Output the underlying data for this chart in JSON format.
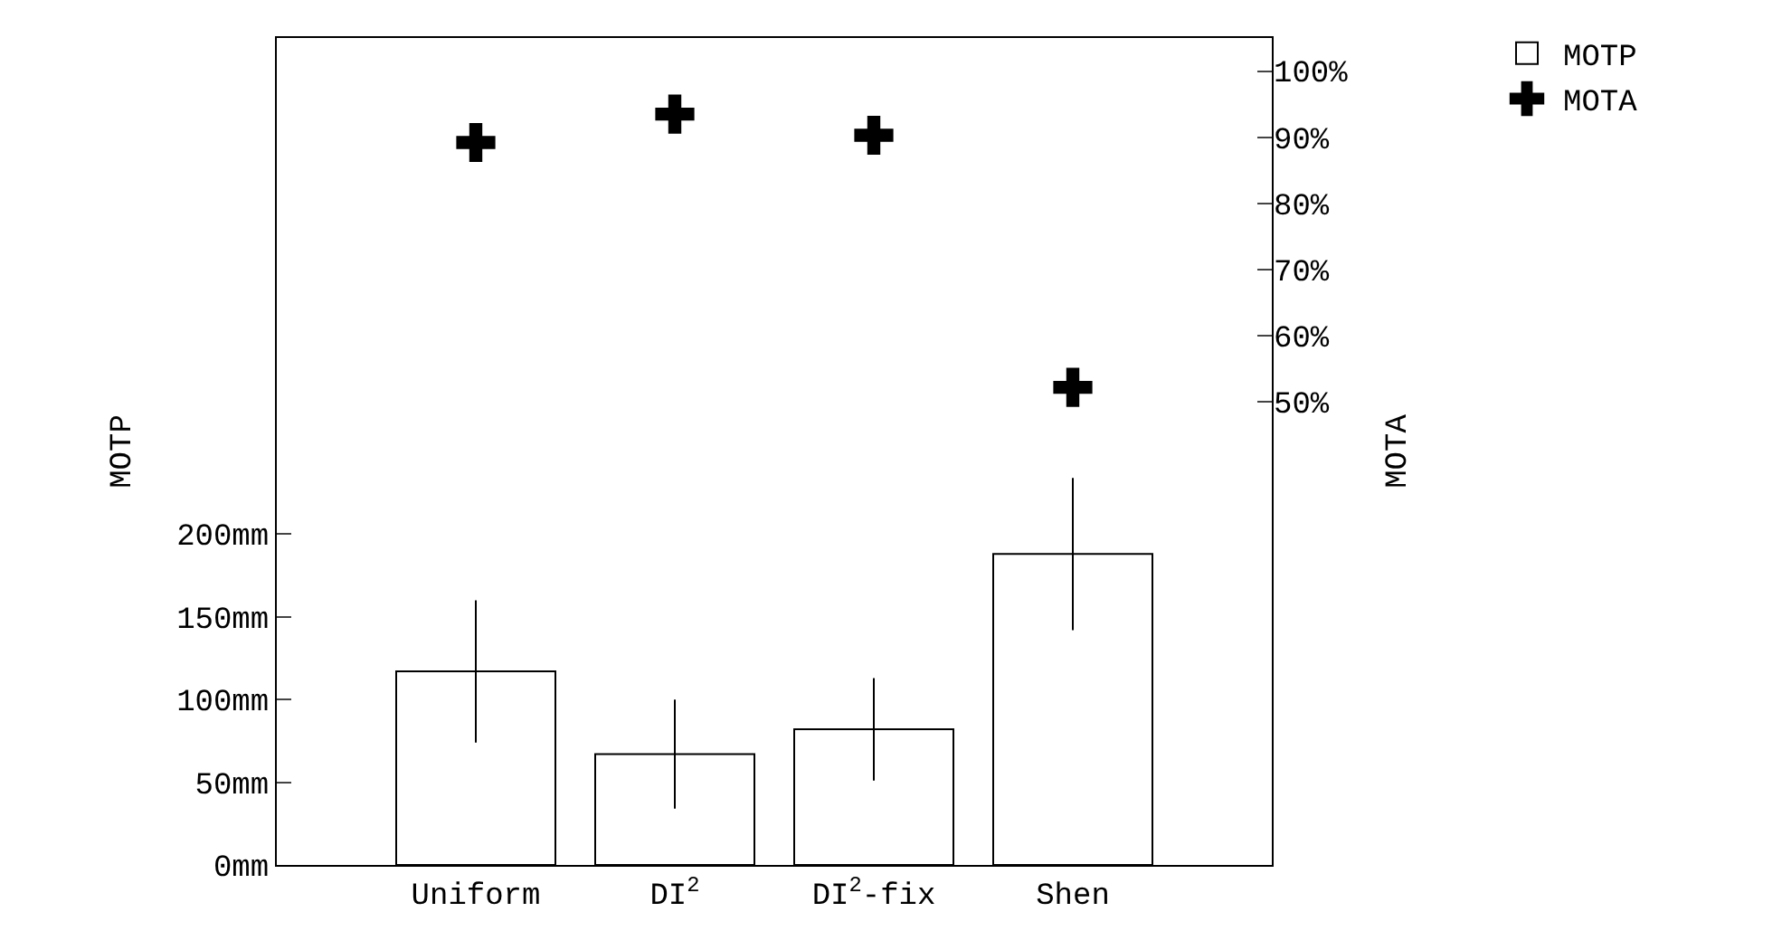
{
  "chart_data": {
    "type": "scatter",
    "ylabel": "MOTP",
    "y2label": "MOTA",
    "categories": [
      "Uniform",
      "DI$^{2}$",
      "DI$^{2}$-fix",
      "Shen"
    ],
    "series": [
      {
        "name": "MOTP",
        "type": "bar",
        "color": "#ffffff",
        "values": [
          117,
          67,
          82,
          188
        ],
        "errors": [
          [
            74,
            160
          ],
          [
            34,
            100
          ],
          [
            51,
            113
          ],
          [
            142,
            234
          ]
        ]
      },
      {
        "name": "MOTA",
        "axis": "y2",
        "color": "#000000",
        "marker": "cross",
        "values": [
          89.2,
          93.5,
          90.3,
          52.2
        ]
      }
    ],
    "ylim": [
      0,
      500
    ],
    "yticks": [
      {
        "value": 0,
        "label": "0mm"
      },
      {
        "value": 50,
        "label": "50mm"
      },
      {
        "value": 100,
        "label": "100mm"
      },
      {
        "value": 150,
        "label": "150mm"
      },
      {
        "value": 200,
        "label": "200mm"
      }
    ],
    "y2lim": [
      -20,
      105
    ],
    "y2ticks": [
      {
        "value": 50,
        "label": "50%"
      },
      {
        "value": 60,
        "label": "60%"
      },
      {
        "value": 70,
        "label": "70%"
      },
      {
        "value": 80,
        "label": "80%"
      },
      {
        "value": 90,
        "label": "90%"
      },
      {
        "value": 100,
        "label": "100%"
      }
    ],
    "grid": false,
    "legend": "top right"
  }
}
